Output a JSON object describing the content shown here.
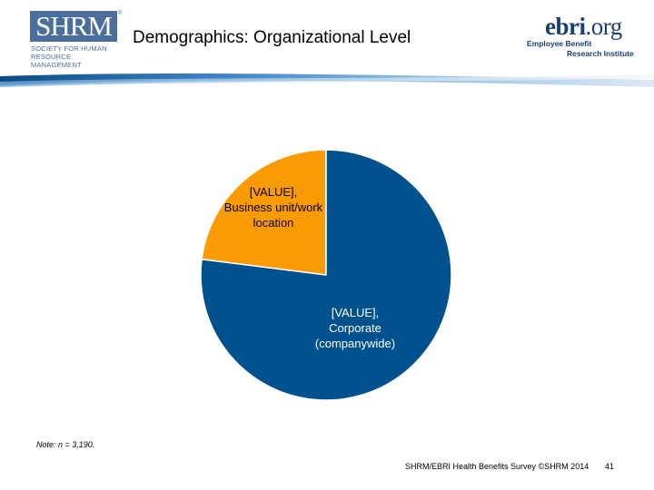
{
  "header": {
    "shrm_logo": {
      "mark": "SHRM",
      "registered": "®",
      "subtitle_line1": "SOCIETY FOR HUMAN",
      "subtitle_line2": "RESOURCE MANAGEMENT"
    },
    "title": "Demographics: Organizational Level",
    "ebri_logo": {
      "mark": "ebri",
      "mark_suffix": ".org",
      "subtitle_line1": "Employee Benefit",
      "subtitle_line2": "Research Institute"
    }
  },
  "colors": {
    "corporate": "#02518f",
    "business_unit": "#fb9b04",
    "shrm_blue": "#4a6f9e",
    "ebri_navy": "#1b3f73"
  },
  "chart_data": {
    "type": "pie",
    "title": "",
    "slices": [
      {
        "label_lines": [
          "[VALUE],",
          "Business unit/work",
          "location"
        ],
        "value": 23,
        "color": "#fb9b04"
      },
      {
        "label_lines": [
          "[VALUE],",
          "Corporate",
          "(companywide)"
        ],
        "value": 77,
        "color": "#02518f"
      }
    ]
  },
  "note": "Note: n =  3,190.",
  "footer": {
    "source": "SHRM/EBRI Health Benefits Survey ©SHRM 2014",
    "page": "41"
  }
}
